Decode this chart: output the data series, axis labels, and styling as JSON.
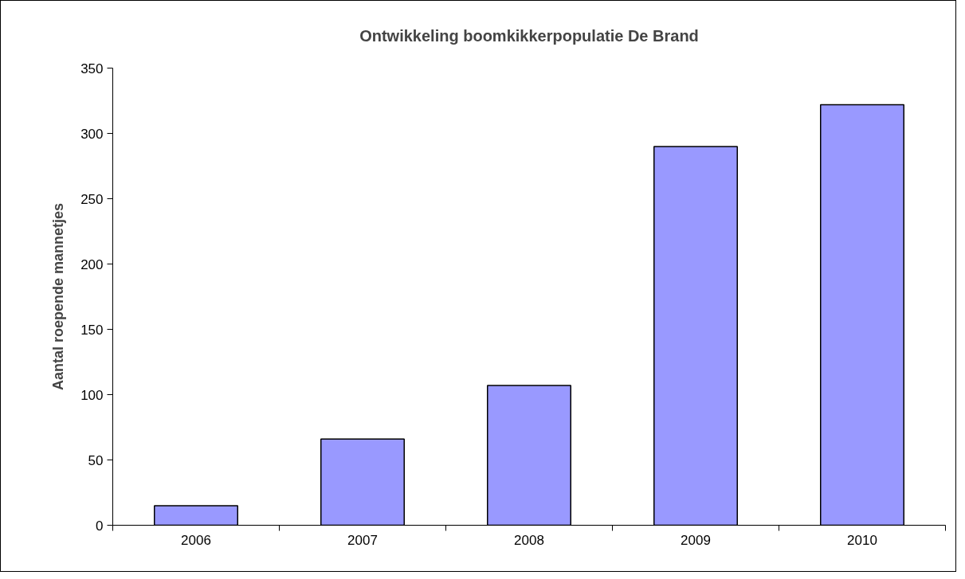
{
  "chart_data": {
    "type": "bar",
    "title": "Ontwikkeling boomkikkerpopulatie De Brand",
    "ylabel": "Aantal roepende mannetjes",
    "categories": [
      "2006",
      "2007",
      "2008",
      "2009",
      "2010"
    ],
    "values": [
      15,
      66,
      107,
      290,
      322
    ],
    "color": "#9999ff",
    "ylim": [
      0,
      350
    ],
    "yticks": [
      0,
      50,
      100,
      150,
      200,
      250,
      300,
      350
    ],
    "grid": false,
    "legend": false
  }
}
